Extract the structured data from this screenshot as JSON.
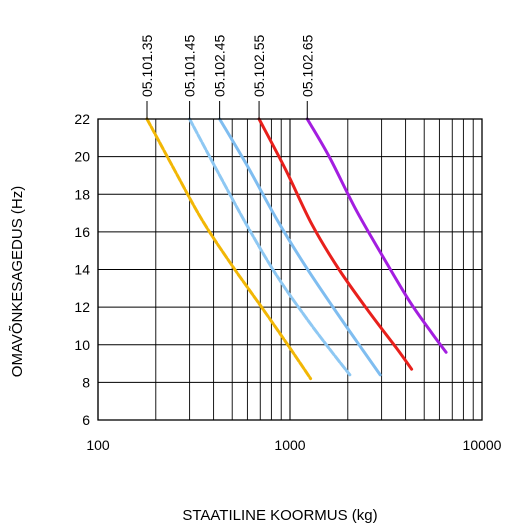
{
  "chart_data": {
    "type": "line",
    "xlabel": "STAATILINE KOORMUS (kg)",
    "ylabel": "OMAVÕNKESAGEDUS (Hz)",
    "x_scale": "log",
    "xlim": [
      100,
      10000
    ],
    "ylim": [
      6,
      22
    ],
    "x_tick_labels": [
      "100",
      "1000",
      "10000"
    ],
    "y_tick_labels": [
      "6",
      "8",
      "10",
      "12",
      "14",
      "16",
      "18",
      "20",
      "22"
    ],
    "grid": true,
    "series": [
      {
        "name": "05.101.35",
        "color": "#f2b705",
        "style": "dashed",
        "x": [
          180,
          250,
          350,
          500,
          700,
          900,
          1100,
          1280
        ],
        "y": [
          22,
          19.3,
          16.6,
          14.2,
          12.1,
          10.5,
          9.2,
          8.2
        ]
      },
      {
        "name": "05.101.45",
        "color": "#8ec8f3",
        "style": "dashed",
        "x": [
          300,
          420,
          600,
          850,
          1200,
          1600,
          2050
        ],
        "y": [
          22,
          19.2,
          16.3,
          13.7,
          11.5,
          9.8,
          8.4
        ]
      },
      {
        "name": "05.102.45",
        "color": "#7fbdf0",
        "style": "solid",
        "x": [
          430,
          600,
          850,
          1200,
          1700,
          2400,
          2950
        ],
        "y": [
          22,
          19.5,
          16.7,
          14.2,
          11.9,
          9.7,
          8.4
        ]
      },
      {
        "name": "05.102.55",
        "color": "#e8201c",
        "style": "solid",
        "x": [
          690,
          950,
          1300,
          1800,
          2600,
          3600,
          4300
        ],
        "y": [
          22,
          19.3,
          16.4,
          14.0,
          11.7,
          9.8,
          8.7
        ]
      },
      {
        "name": "05.102.65",
        "color": "#a31ee0",
        "style": "solid",
        "x": [
          1230,
          1600,
          2200,
          3000,
          4200,
          5500,
          6500
        ],
        "y": [
          22,
          20.0,
          17.2,
          14.8,
          12.3,
          10.6,
          9.6
        ]
      }
    ]
  }
}
